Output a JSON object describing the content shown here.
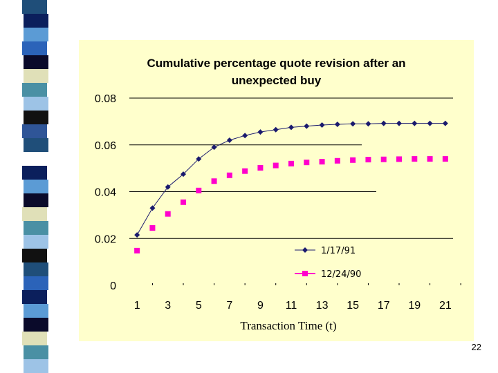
{
  "slide": {
    "number": "22"
  },
  "decoration": {
    "strip_colors": [
      "#1F4E79",
      "#0B1F5C",
      "#5B9BD5",
      "#2B63B9",
      "#0A0A2A",
      "#E0E0B8",
      "#4A90A4",
      "#9DC3E6",
      "#111111",
      "#2F5597",
      "#1F4E79",
      "#FFFFFF",
      "#0B1F5C",
      "#5B9BD5",
      "#0A0A2A",
      "#E0E0B8",
      "#4A90A4",
      "#9DC3E6",
      "#111111",
      "#1F4E79",
      "#2B63B9",
      "#0B1F5C",
      "#5B9BD5",
      "#0A0A2A",
      "#E0E0B8",
      "#4A90A4",
      "#9DC3E6"
    ],
    "panel_color": "#FFFFCC"
  },
  "chart_data": {
    "type": "line",
    "title_line1": "Cumulative percentage quote revision after an",
    "title_line2": "unexpected buy",
    "xlabel": "Transaction Time (t)",
    "ylabel": "",
    "x": [
      1,
      2,
      3,
      4,
      5,
      6,
      7,
      8,
      9,
      10,
      11,
      12,
      13,
      14,
      15,
      16,
      17,
      18,
      19,
      20,
      21
    ],
    "x_tick_labels": [
      "1",
      "3",
      "5",
      "7",
      "9",
      "11",
      "13",
      "15",
      "17",
      "19",
      "21"
    ],
    "y_tick_labels": [
      "0",
      "0.02",
      "0.04",
      "0.06",
      "0.08"
    ],
    "ylim": [
      0,
      0.08
    ],
    "series": [
      {
        "name": "1/17/91",
        "color": "#1A1A6E",
        "marker": "diamond",
        "values": [
          0.0215,
          0.033,
          0.042,
          0.0475,
          0.054,
          0.059,
          0.062,
          0.064,
          0.0655,
          0.0665,
          0.0675,
          0.068,
          0.0685,
          0.0688,
          0.069,
          0.069,
          0.0692,
          0.0692,
          0.0692,
          0.0692,
          0.0692
        ]
      },
      {
        "name": "12/24/90",
        "color": "#FF00CC",
        "marker": "square",
        "values": [
          0.0148,
          0.0245,
          0.0305,
          0.0355,
          0.0405,
          0.0445,
          0.047,
          0.0488,
          0.0502,
          0.0512,
          0.052,
          0.0525,
          0.0528,
          0.0532,
          0.0535,
          0.0537,
          0.0538,
          0.0539,
          0.054,
          0.054,
          0.054
        ]
      }
    ],
    "legend_position": "bottom-right"
  }
}
